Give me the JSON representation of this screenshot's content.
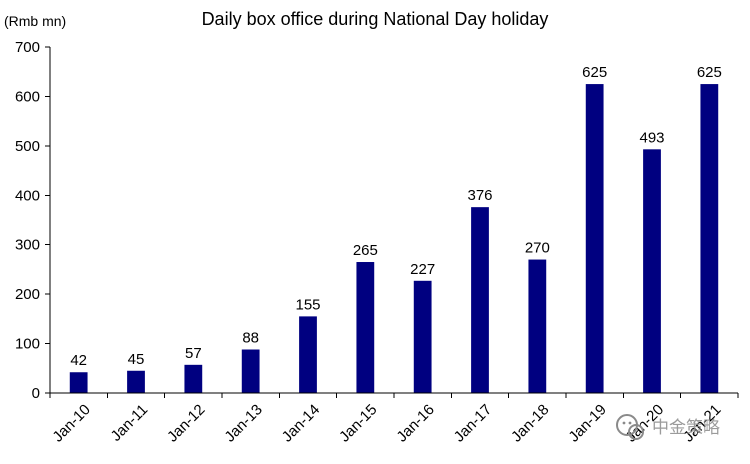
{
  "chart_data": {
    "type": "bar",
    "title": "Daily box office during National Day holiday",
    "ylabel": "(Rmb mn)",
    "xlabel": "",
    "categories": [
      "Jan-10",
      "Jan-11",
      "Jan-12",
      "Jan-13",
      "Jan-14",
      "Jan-15",
      "Jan-16",
      "Jan-17",
      "Jan-18",
      "Jan-19",
      "Jan-20",
      "Jan-21"
    ],
    "values": [
      42,
      45,
      57,
      88,
      155,
      265,
      227,
      376,
      270,
      625,
      493,
      625
    ],
    "ylim": [
      0,
      700
    ],
    "yticks": [
      0,
      100,
      200,
      300,
      400,
      500,
      600,
      700
    ],
    "bar_color": "#000080",
    "grid": false,
    "legend": "none"
  },
  "watermark": {
    "text": "中金策略",
    "icon": "wechat-icon"
  }
}
